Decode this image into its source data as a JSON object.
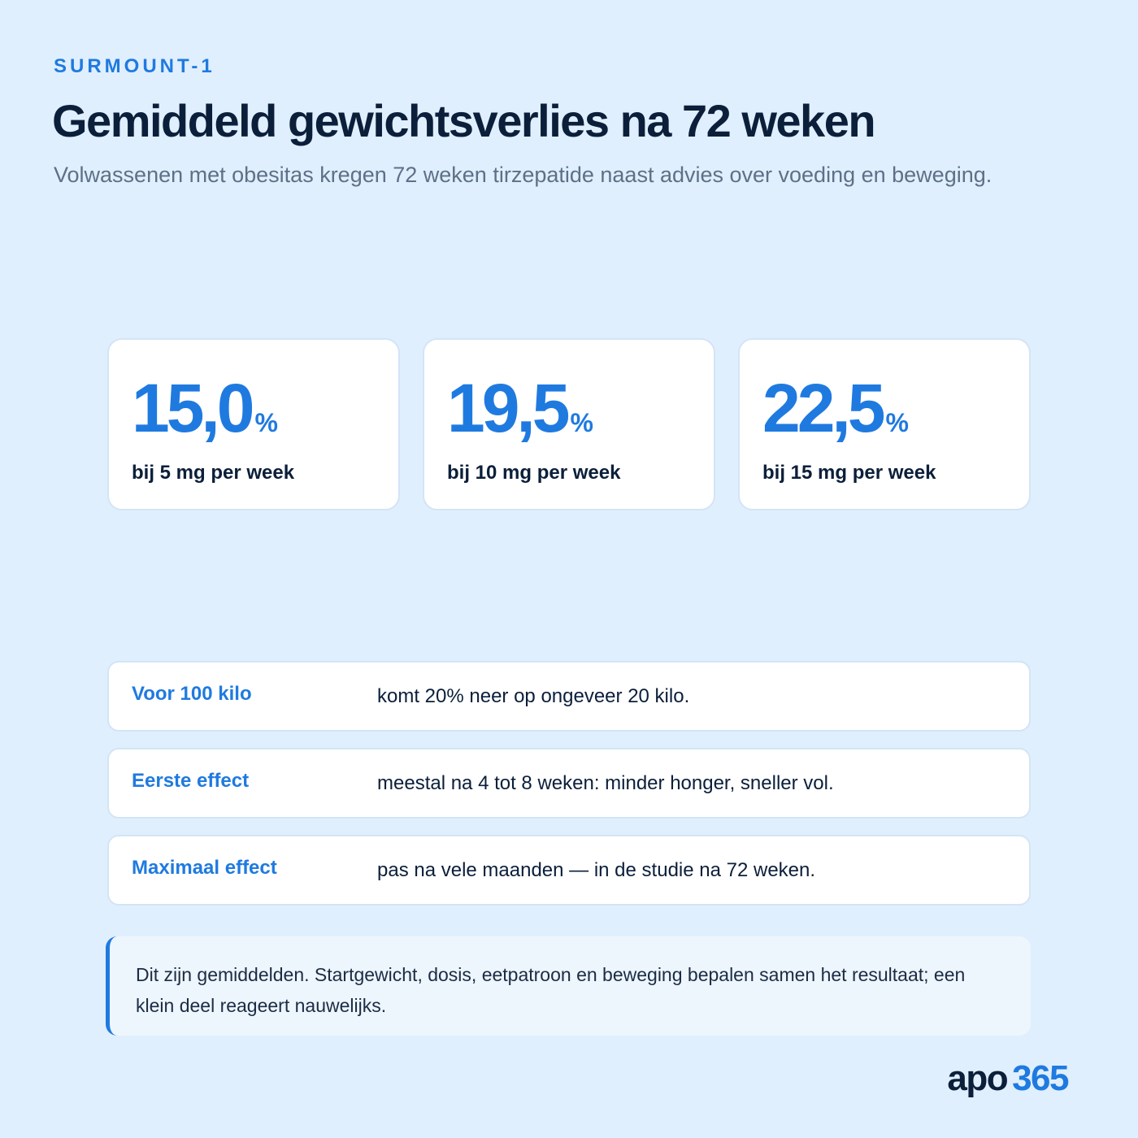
{
  "header": {
    "eyebrow": "SURMOUNT-1",
    "title": "Gemiddeld gewichtsverlies na 72 weken",
    "subtitle": "Volwassenen met obesitas kregen 72 weken tirzepatide naast advies over voeding en beweging."
  },
  "stats": [
    {
      "value": "15,0",
      "unit": "%",
      "label": "bij 5 mg per week"
    },
    {
      "value": "19,5",
      "unit": "%",
      "label": "bij 10 mg per week"
    },
    {
      "value": "22,5",
      "unit": "%",
      "label": "bij 15 mg per week"
    }
  ],
  "facts": [
    {
      "key": "Voor 100 kilo",
      "value": "komt 20% neer op ongeveer 20 kilo."
    },
    {
      "key": "Eerste effect",
      "value": "meestal na 4 tot 8 weken: minder honger, sneller vol."
    },
    {
      "key": "Maximaal effect",
      "value": "pas na vele maanden — in de studie na 72 weken."
    }
  ],
  "note": "Dit zijn gemiddelden. Startgewicht, dosis, eetpatroon en beweging bepalen samen het resultaat; een klein deel reageert nauwelijks.",
  "logo": {
    "mark": "apo",
    "number": "365"
  },
  "colors": {
    "accent": "#1f7ae0",
    "background": "#e0effd",
    "text": "#0b1f3a"
  }
}
